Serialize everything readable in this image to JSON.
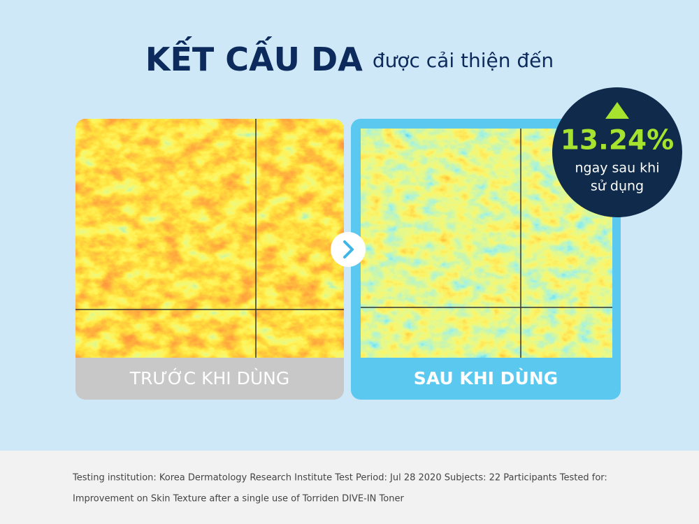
{
  "header": {
    "title": "KẾT CẤU DA",
    "subtitle": "được cải thiện đến"
  },
  "badge": {
    "value": "13.24%",
    "caption_lines": [
      "ngay sau khi",
      "sử dụng"
    ]
  },
  "panels": [
    {
      "label": "TRƯỚC KHI DÙNG"
    },
    {
      "label": "SAU KHI DÙNG"
    }
  ],
  "footnote": {
    "lines": [
      "Testing institution: Korea Dermatology Research Institute Test Period: Jul 28 2020 Subjects: 22 Participants Tested for:",
      "Improvement on Skin Texture after a single use of Torriden DIVE-IN Toner"
    ]
  }
}
